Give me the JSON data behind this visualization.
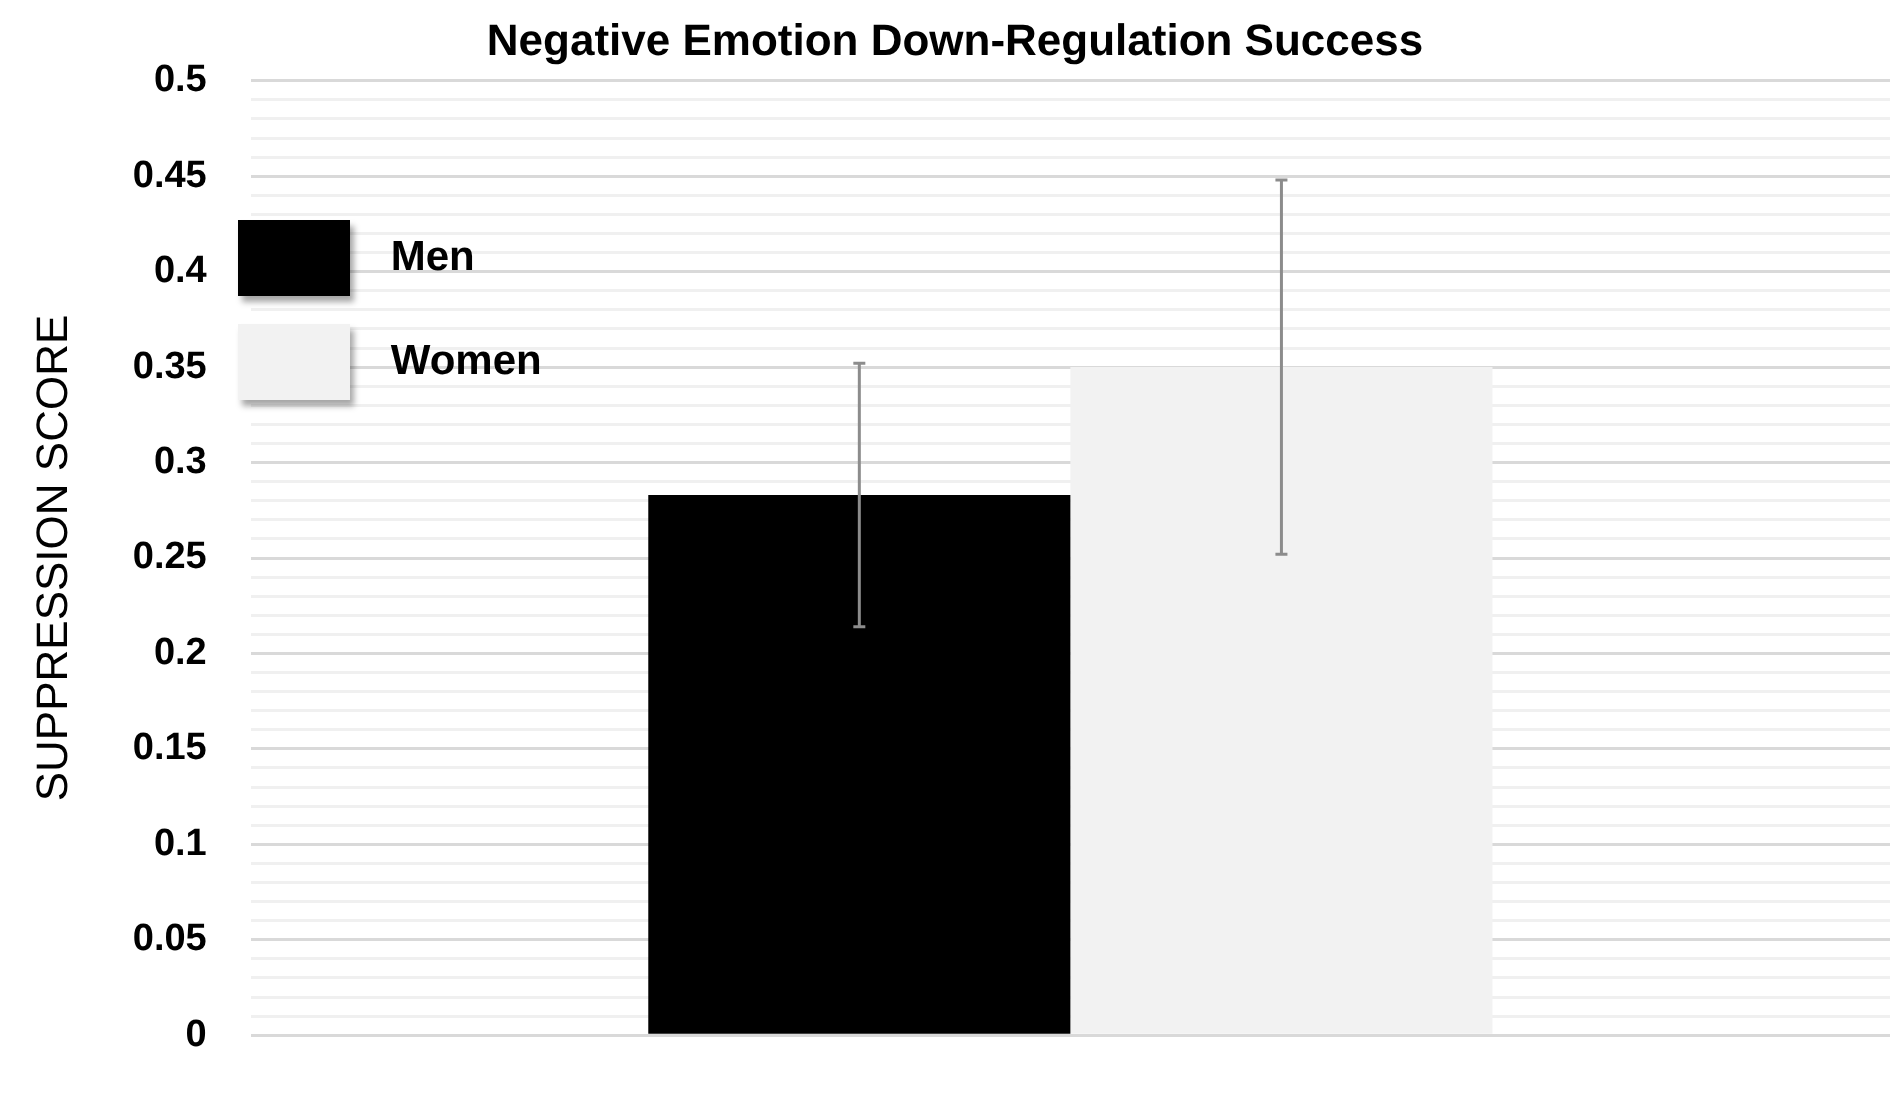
{
  "chart_data": {
    "type": "bar",
    "title": "Negative Emotion Down-Regulation Success",
    "ylabel": "SUPPRESSION SCORE",
    "categories": [
      null
    ],
    "series": [
      {
        "name": "Men",
        "color": "#000000",
        "values": [
          0.283
        ],
        "errors": [
          [
            0.214,
            0.352
          ]
        ]
      },
      {
        "name": "Women",
        "color": "#f2f2f2",
        "values": [
          0.35
        ],
        "errors": [
          [
            0.252,
            0.448
          ]
        ]
      }
    ],
    "ylim": [
      0,
      0.5
    ],
    "yticks": [
      0,
      {
        "value": 0.01,
        "label": null
      },
      {
        "value": 0.02,
        "label": null
      },
      {
        "value": 0.03,
        "label": null
      },
      {
        "value": 0.04,
        "label": null
      },
      0.05,
      {
        "value": 0.06,
        "label": null
      },
      {
        "value": 0.07,
        "label": null
      },
      {
        "value": 0.08,
        "label": null
      },
      {
        "value": 0.09,
        "label": null
      },
      0.1,
      {
        "value": 0.11,
        "label": null
      },
      {
        "value": 0.12,
        "label": null
      },
      {
        "value": 0.13,
        "label": null
      },
      {
        "value": 0.14,
        "label": null
      },
      0.15,
      {
        "value": 0.16,
        "label": null
      },
      {
        "value": 0.17,
        "label": null
      },
      {
        "value": 0.18,
        "label": null
      },
      {
        "value": 0.19,
        "label": null
      },
      0.2,
      {
        "value": 0.21,
        "label": null
      },
      {
        "value": 0.22,
        "label": null
      },
      {
        "value": 0.23,
        "label": null
      },
      {
        "value": 0.24,
        "label": null
      },
      0.25,
      {
        "value": 0.26,
        "label": null
      },
      {
        "value": 0.27,
        "label": null
      },
      {
        "value": 0.28,
        "label": null
      },
      {
        "value": 0.29,
        "label": null
      },
      0.3,
      {
        "value": 0.31,
        "label": null
      },
      {
        "value": 0.32,
        "label": null
      },
      {
        "value": 0.33,
        "label": null
      },
      {
        "value": 0.34,
        "label": null
      },
      0.35,
      {
        "value": 0.36,
        "label": null
      },
      {
        "value": 0.37,
        "label": null
      },
      {
        "value": 0.38,
        "label": null
      },
      {
        "value": 0.39,
        "label": null
      },
      0.4,
      {
        "value": 0.41,
        "label": null
      },
      {
        "value": 0.42,
        "label": null
      },
      {
        "value": 0.43,
        "label": null
      },
      {
        "value": 0.44,
        "label": null
      },
      0.45,
      {
        "value": 0.46,
        "label": null
      },
      {
        "value": 0.47,
        "label": null
      },
      {
        "value": 0.48,
        "label": null
      },
      {
        "value": 0.49,
        "label": null
      },
      0.5
    ],
    "grid": "y",
    "legend": "top left"
  }
}
